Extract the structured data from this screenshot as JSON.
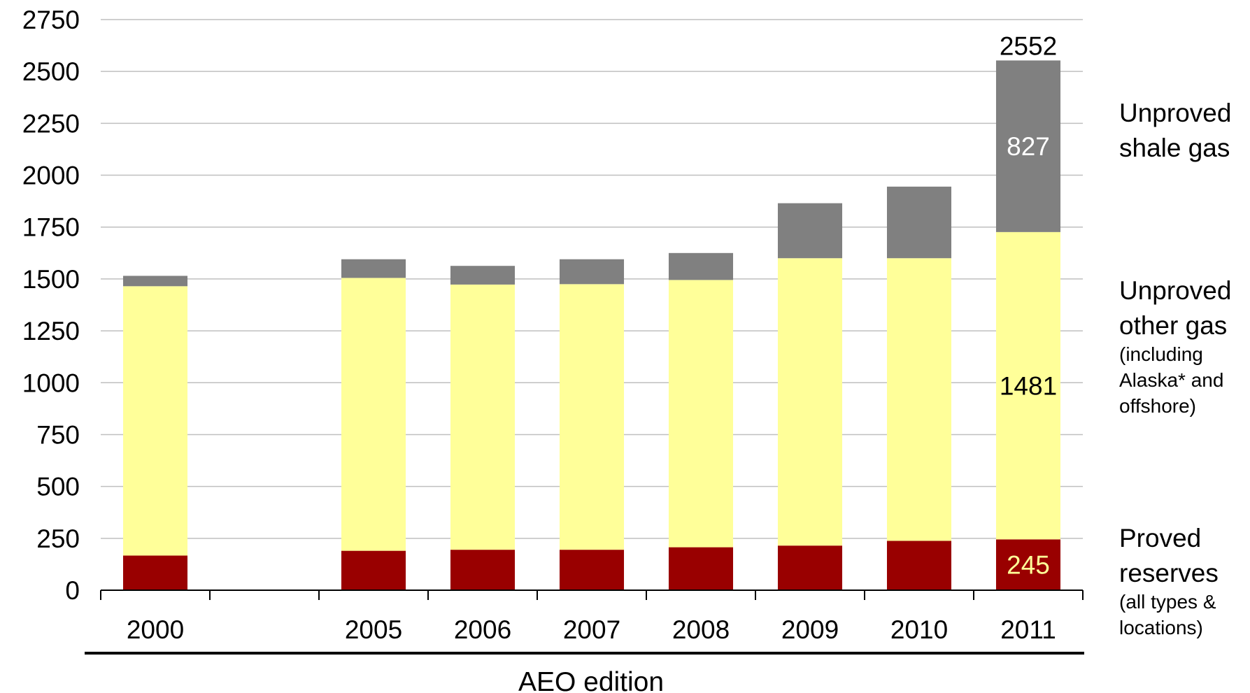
{
  "chart_data": {
    "type": "bar",
    "stacked": true,
    "categories": [
      "2000",
      "",
      "2005",
      "2006",
      "2007",
      "2008",
      "2009",
      "2010",
      "2011"
    ],
    "series": [
      {
        "name": "Proved reserves",
        "color": "#990000",
        "values": [
          167,
          null,
          190,
          195,
          195,
          207,
          215,
          238,
          245
        ]
      },
      {
        "name": "Unproved other gas",
        "color": "#FFFF99",
        "values": [
          1298,
          null,
          1315,
          1278,
          1280,
          1288,
          1385,
          1362,
          1481
        ]
      },
      {
        "name": "Unproved shale gas",
        "color": "#808080",
        "values": [
          50,
          null,
          90,
          90,
          120,
          130,
          265,
          345,
          827
        ]
      }
    ],
    "xlabel": "AEO edition",
    "ylim": [
      0,
      2750
    ],
    "yticks": [
      0,
      250,
      500,
      750,
      1000,
      1250,
      1500,
      1750,
      2000,
      2250,
      2500,
      2750
    ],
    "grid": true,
    "legend_placement": "right",
    "legend": [
      {
        "series": "Unproved shale gas",
        "lines": [
          "Unproved",
          "shale gas"
        ],
        "sub": []
      },
      {
        "series": "Unproved other gas",
        "lines": [
          "Unproved",
          "other gas"
        ],
        "sub": [
          "(including",
          "Alaska* and",
          "offshore)"
        ]
      },
      {
        "series": "Proved reserves",
        "lines": [
          "Proved",
          "reserves"
        ],
        "sub": [
          "(all types &",
          "locations)"
        ]
      }
    ],
    "annotations": [
      {
        "category": "2011",
        "text": "2552",
        "position": "top",
        "color": "#000000"
      },
      {
        "category": "2011",
        "series": "Unproved shale gas",
        "text": "827",
        "color": "#ffffff"
      },
      {
        "category": "2011",
        "series": "Unproved other gas",
        "text": "1481",
        "color": "#000000"
      },
      {
        "category": "2011",
        "series": "Proved reserves",
        "text": "245",
        "color": "#FFFF99"
      }
    ]
  }
}
